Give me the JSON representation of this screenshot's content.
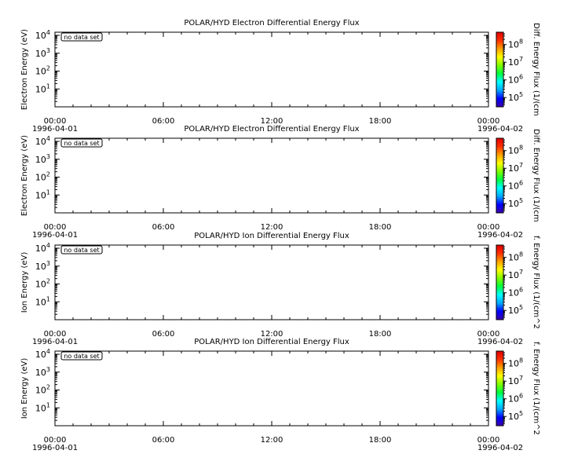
{
  "chart_data": [
    {
      "type": "heatmap",
      "title": "POLAR/HYD  Electron Differential Energy Flux",
      "ylabel": "Electron Energy (eV)",
      "colorbar_label": "Diff. Energy Flux (1/(cm",
      "annotation": "no data set",
      "x_ticks": [
        "00:00",
        "06:00",
        "12:00",
        "18:00",
        "00:00"
      ],
      "x_start_date": "1996-04-01",
      "x_end_date": "1996-04-02",
      "xlim": [
        "1996-04-01 00:00",
        "1996-04-02 00:00"
      ],
      "y_scale": "log",
      "ylim": [
        1,
        10000
      ],
      "y_ticks": [
        {
          "base": "10",
          "exp": "1"
        },
        {
          "base": "10",
          "exp": "2"
        },
        {
          "base": "10",
          "exp": "3"
        },
        {
          "base": "10",
          "exp": "4"
        }
      ],
      "colorbar_scale": "log",
      "colorbar_ticks": [
        {
          "base": "10",
          "exp": "5"
        },
        {
          "base": "10",
          "exp": "6"
        },
        {
          "base": "10",
          "exp": "7"
        },
        {
          "base": "10",
          "exp": "8"
        }
      ],
      "colorbar_range": [
        30000,
        500000000
      ],
      "values": []
    },
    {
      "type": "heatmap",
      "title": "POLAR/HYD  Electron Differential Energy Flux",
      "ylabel": "Electron Energy (eV)",
      "colorbar_label": "Diff. Energy Flux (1/(cm",
      "annotation": "no data set",
      "x_ticks": [
        "00:00",
        "06:00",
        "12:00",
        "18:00",
        "00:00"
      ],
      "x_start_date": "1996-04-01",
      "x_end_date": "1996-04-02",
      "xlim": [
        "1996-04-01 00:00",
        "1996-04-02 00:00"
      ],
      "y_scale": "log",
      "ylim": [
        1,
        10000
      ],
      "y_ticks": [
        {
          "base": "10",
          "exp": "1"
        },
        {
          "base": "10",
          "exp": "2"
        },
        {
          "base": "10",
          "exp": "3"
        },
        {
          "base": "10",
          "exp": "4"
        }
      ],
      "colorbar_scale": "log",
      "colorbar_ticks": [
        {
          "base": "10",
          "exp": "5"
        },
        {
          "base": "10",
          "exp": "6"
        },
        {
          "base": "10",
          "exp": "7"
        },
        {
          "base": "10",
          "exp": "8"
        }
      ],
      "colorbar_range": [
        30000,
        500000000
      ],
      "values": []
    },
    {
      "type": "heatmap",
      "title": "POLAR/HYD  Ion Differential Energy Flux",
      "ylabel": "Ion Energy (eV)",
      "colorbar_label": "f. Energy Flux (1/(cm^2",
      "annotation": "no data set",
      "x_ticks": [
        "00:00",
        "06:00",
        "12:00",
        "18:00",
        "00:00"
      ],
      "x_start_date": "1996-04-01",
      "x_end_date": "1996-04-02",
      "xlim": [
        "1996-04-01 00:00",
        "1996-04-02 00:00"
      ],
      "y_scale": "log",
      "ylim": [
        1,
        10000
      ],
      "y_ticks": [
        {
          "base": "10",
          "exp": "1"
        },
        {
          "base": "10",
          "exp": "2"
        },
        {
          "base": "10",
          "exp": "3"
        },
        {
          "base": "10",
          "exp": "4"
        }
      ],
      "colorbar_scale": "log",
      "colorbar_ticks": [
        {
          "base": "10",
          "exp": "5"
        },
        {
          "base": "10",
          "exp": "6"
        },
        {
          "base": "10",
          "exp": "7"
        },
        {
          "base": "10",
          "exp": "8"
        }
      ],
      "colorbar_range": [
        30000,
        500000000
      ],
      "values": []
    },
    {
      "type": "heatmap",
      "title": "POLAR/HYD  Ion Differential Energy Flux",
      "ylabel": "Ion Energy (eV)",
      "colorbar_label": "f. Energy Flux (1/(cm^2",
      "annotation": "no data set",
      "x_ticks": [
        "00:00",
        "06:00",
        "12:00",
        "18:00",
        "00:00"
      ],
      "x_start_date": "1996-04-01",
      "x_end_date": "1996-04-02",
      "xlim": [
        "1996-04-01 00:00",
        "1996-04-02 00:00"
      ],
      "y_scale": "log",
      "ylim": [
        1,
        10000
      ],
      "y_ticks": [
        {
          "base": "10",
          "exp": "1"
        },
        {
          "base": "10",
          "exp": "2"
        },
        {
          "base": "10",
          "exp": "3"
        },
        {
          "base": "10",
          "exp": "4"
        }
      ],
      "colorbar_scale": "log",
      "colorbar_ticks": [
        {
          "base": "10",
          "exp": "5"
        },
        {
          "base": "10",
          "exp": "6"
        },
        {
          "base": "10",
          "exp": "7"
        },
        {
          "base": "10",
          "exp": "8"
        }
      ],
      "colorbar_range": [
        30000,
        500000000
      ],
      "values": []
    }
  ],
  "colors": {
    "background": "#ffffff",
    "axis": "#000000",
    "colormap": [
      "#3b00a8",
      "#0000ff",
      "#00a8ff",
      "#00ffff",
      "#00ff40",
      "#80ff00",
      "#ffff00",
      "#ffa000",
      "#ff3000",
      "#e00000"
    ]
  }
}
